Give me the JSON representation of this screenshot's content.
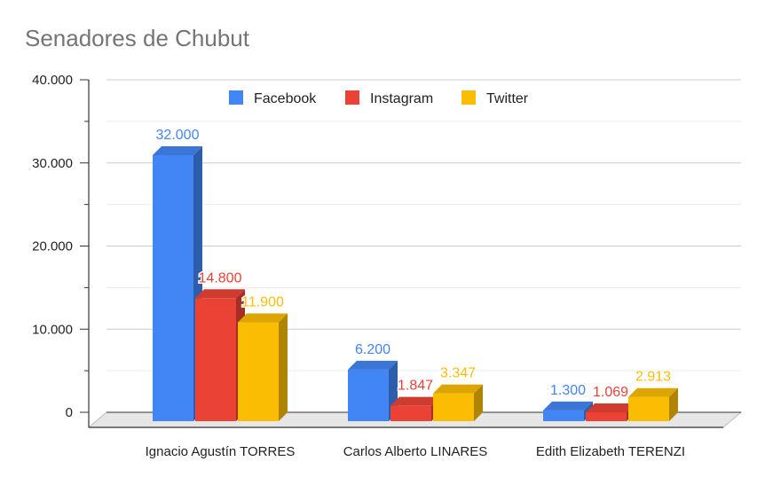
{
  "chart_data": {
    "type": "bar",
    "title": "Senadores de Chubut",
    "categories": [
      "Ignacio Agustín TORRES",
      "Carlos Alberto LINARES",
      "Edith Elizabeth TERENZI"
    ],
    "series": [
      {
        "name": "Facebook",
        "color": "#4285f4",
        "values": [
          32000,
          6200,
          1300
        ],
        "labels": [
          "32.000",
          "6.200",
          "1.300"
        ]
      },
      {
        "name": "Instagram",
        "color": "#ea4335",
        "values": [
          14800,
          1847,
          1069
        ],
        "labels": [
          "14.800",
          "1.847",
          "1.069"
        ]
      },
      {
        "name": "Twitter",
        "color": "#fbbc04",
        "values": [
          11900,
          3347,
          2913
        ],
        "labels": [
          "11.900",
          "3.347",
          "2.913"
        ]
      }
    ],
    "yticks": [
      0,
      10000,
      20000,
      30000,
      40000
    ],
    "ytick_labels": [
      "0",
      "10.000",
      "20.000",
      "30.000",
      "40.000"
    ],
    "ylim": [
      0,
      40000
    ],
    "xlabel": "",
    "ylabel": "",
    "legend": "top",
    "grid": true,
    "style": "3d"
  }
}
